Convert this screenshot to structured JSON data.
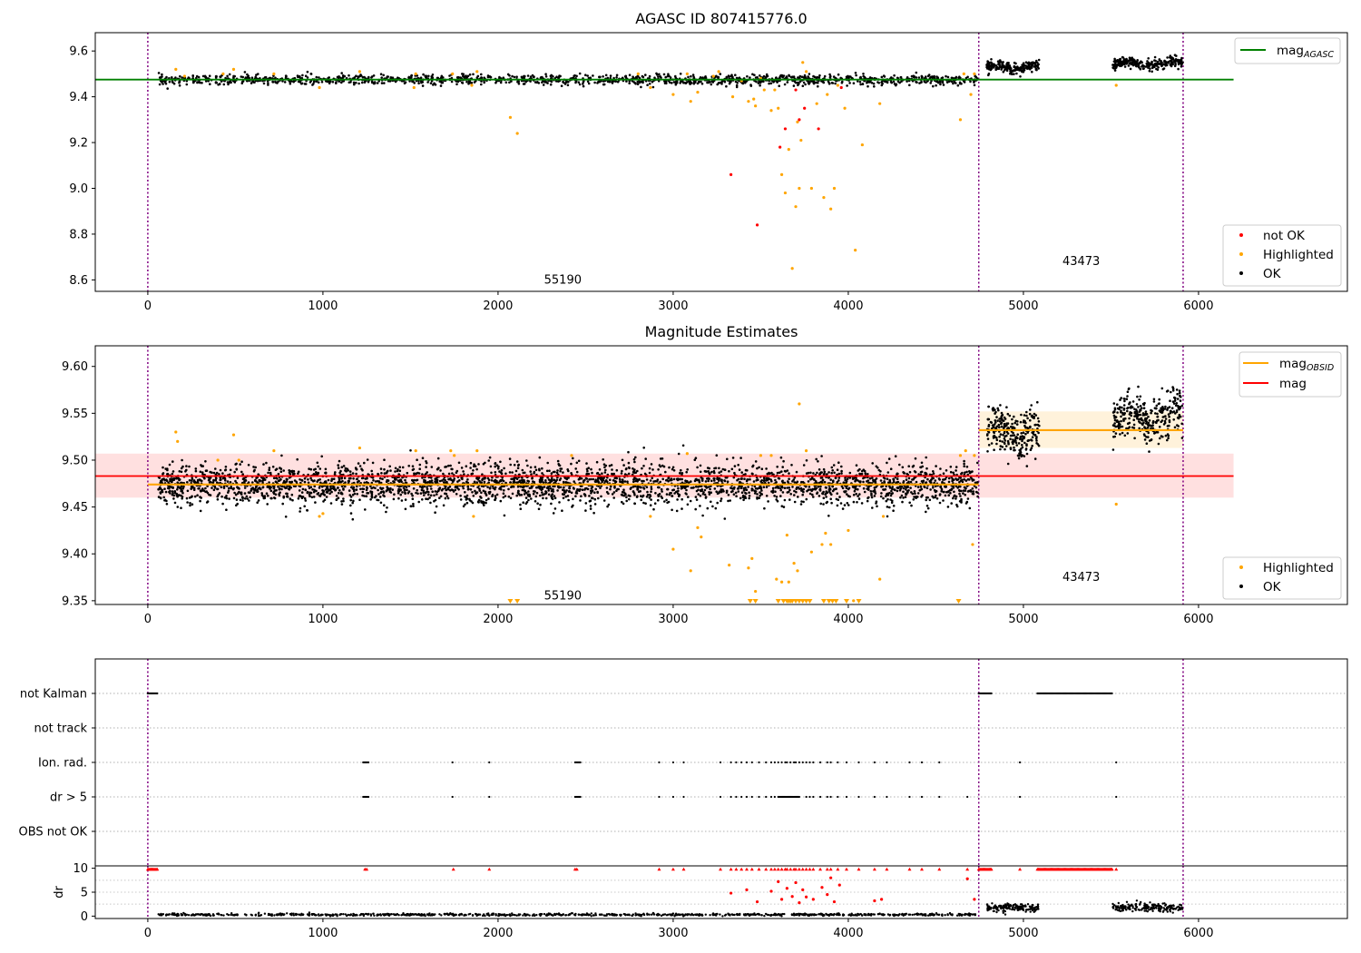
{
  "chart_data": [
    {
      "type": "scatter",
      "title": "AGASC ID 807415776.0",
      "xlim": [
        -300,
        6850
      ],
      "ylim": [
        8.55,
        9.68
      ],
      "xticks": [
        "0",
        "1000",
        "2000",
        "3000",
        "4000",
        "5000",
        "6000"
      ],
      "yticks": [
        "8.6",
        "8.8",
        "9.0",
        "9.2",
        "9.4",
        "9.6"
      ],
      "vlines_x": [
        0,
        4745,
        5912
      ],
      "annotations": [
        {
          "text": "55190",
          "x": 2370,
          "y": 8.6
        },
        {
          "text": "43473",
          "x": 5330,
          "y": 8.68
        }
      ],
      "hline": {
        "y": 9.475,
        "x0": -300,
        "x1": 6200,
        "color": "#008000"
      },
      "legend_top": {
        "label": "mag",
        "sub": "AGASC",
        "color": "#008000"
      },
      "legend_bottom": [
        {
          "label": "not OK",
          "color": "#ff0000"
        },
        {
          "label": "Highlighted",
          "color": "#ffa500"
        },
        {
          "label": "OK",
          "color": "#000000"
        }
      ],
      "series": [
        {
          "name": "OK",
          "color": "#000000",
          "segments": [
            {
              "x0": 60,
              "x1": 4740,
              "mean": 9.474,
              "spread": 0.011,
              "n": 1400
            },
            {
              "x0": 4790,
              "x1": 5090,
              "mean": 9.53,
              "spread": 0.012,
              "n": 200
            },
            {
              "x0": 5510,
              "x1": 5910,
              "mean": 9.545,
              "spread": 0.012,
              "n": 260
            }
          ]
        },
        {
          "name": "Highlighted",
          "color": "#ffa500",
          "points": [
            [
              160,
              9.52
            ],
            [
              210,
              9.49
            ],
            [
              430,
              9.5
            ],
            [
              490,
              9.52
            ],
            [
              720,
              9.5
            ],
            [
              980,
              9.44
            ],
            [
              1210,
              9.51
            ],
            [
              1520,
              9.44
            ],
            [
              1530,
              9.5
            ],
            [
              1740,
              9.5
            ],
            [
              1850,
              9.45
            ],
            [
              1880,
              9.51
            ],
            [
              2070,
              9.31
            ],
            [
              2110,
              9.24
            ],
            [
              2800,
              9.5
            ],
            [
              2870,
              9.44
            ],
            [
              3000,
              9.41
            ],
            [
              3080,
              9.5
            ],
            [
              3100,
              9.38
            ],
            [
              3140,
              9.42
            ],
            [
              3230,
              9.49
            ],
            [
              3260,
              9.51
            ],
            [
              3340,
              9.4
            ],
            [
              3390,
              9.47
            ],
            [
              3430,
              9.38
            ],
            [
              3460,
              9.39
            ],
            [
              3470,
              9.36
            ],
            [
              3500,
              9.48
            ],
            [
              3520,
              9.43
            ],
            [
              3560,
              9.34
            ],
            [
              3580,
              9.43
            ],
            [
              3600,
              9.35
            ],
            [
              3620,
              9.06
            ],
            [
              3640,
              8.98
            ],
            [
              3660,
              9.17
            ],
            [
              3680,
              8.65
            ],
            [
              3700,
              8.92
            ],
            [
              3710,
              9.29
            ],
            [
              3720,
              9.0
            ],
            [
              3730,
              9.21
            ],
            [
              3740,
              9.55
            ],
            [
              3760,
              9.51
            ],
            [
              3790,
              9.0
            ],
            [
              3820,
              9.37
            ],
            [
              3860,
              8.96
            ],
            [
              3880,
              9.41
            ],
            [
              3900,
              8.91
            ],
            [
              3920,
              9.0
            ],
            [
              3940,
              9.45
            ],
            [
              3980,
              9.35
            ],
            [
              4040,
              8.73
            ],
            [
              4080,
              9.19
            ],
            [
              4180,
              9.37
            ],
            [
              4640,
              9.3
            ],
            [
              4660,
              9.5
            ],
            [
              4700,
              9.41
            ],
            [
              4720,
              9.5
            ],
            [
              5530,
              9.45
            ]
          ]
        },
        {
          "name": "not OK",
          "color": "#ff0000",
          "points": [
            [
              3330,
              9.06
            ],
            [
              3480,
              8.84
            ],
            [
              3610,
              9.18
            ],
            [
              3640,
              9.26
            ],
            [
              3700,
              9.43
            ],
            [
              3720,
              9.3
            ],
            [
              3750,
              9.35
            ],
            [
              3830,
              9.26
            ],
            [
              3960,
              9.44
            ]
          ]
        }
      ]
    },
    {
      "type": "scatter",
      "title": "Magnitude Estimates",
      "xlim": [
        -300,
        6850
      ],
      "ylim": [
        9.346,
        9.622
      ],
      "xticks": [
        "0",
        "1000",
        "2000",
        "3000",
        "4000",
        "5000",
        "6000"
      ],
      "yticks": [
        "9.35",
        "9.40",
        "9.45",
        "9.50",
        "9.55",
        "9.60"
      ],
      "vlines_x": [
        0,
        4745,
        5912
      ],
      "annotations": [
        {
          "text": "55190",
          "x": 2370,
          "y": 9.355
        },
        {
          "text": "43473",
          "x": 5330,
          "y": 9.375
        }
      ],
      "bands": [
        {
          "x0": -300,
          "x1": 6200,
          "y0": 9.46,
          "y1": 9.507,
          "mid": 9.483,
          "color": "#ff0000",
          "alpha": 0.12
        },
        {
          "x0": 4745,
          "x1": 5912,
          "y0": 9.513,
          "y1": 9.552,
          "mid": 9.532,
          "color": "#ffa500",
          "alpha": 0.14
        }
      ],
      "orange_segments": [
        {
          "x0": 0,
          "x1": 4745,
          "y": 9.474
        },
        {
          "x0": 4745,
          "x1": 5912,
          "y": 9.532
        }
      ],
      "legend_top": [
        {
          "label": "mag",
          "sub": "OBSID",
          "color": "#ffa500"
        },
        {
          "label": "mag",
          "sub": "",
          "color": "#ff0000"
        }
      ],
      "legend_bottom": [
        {
          "label": "Highlighted",
          "color": "#ffa500"
        },
        {
          "label": "OK",
          "color": "#000000"
        }
      ],
      "series": [
        {
          "name": "OK",
          "color": "#000000",
          "segments": [
            {
              "x0": 60,
              "x1": 4740,
              "mean": 9.474,
              "spread": 0.011,
              "n": 3200
            },
            {
              "x0": 4790,
              "x1": 5090,
              "mean": 9.53,
              "spread": 0.012,
              "n": 260
            },
            {
              "x0": 5510,
              "x1": 5910,
              "mean": 9.545,
              "spread": 0.012,
              "n": 320
            }
          ]
        },
        {
          "name": "Highlighted",
          "color": "#ffa500",
          "points": [
            [
              160,
              9.53
            ],
            [
              170,
              9.52
            ],
            [
              400,
              9.5
            ],
            [
              490,
              9.527
            ],
            [
              520,
              9.5
            ],
            [
              720,
              9.51
            ],
            [
              980,
              9.44
            ],
            [
              1000,
              9.443
            ],
            [
              1210,
              9.513
            ],
            [
              1530,
              9.51
            ],
            [
              1730,
              9.51
            ],
            [
              1750,
              9.505
            ],
            [
              1860,
              9.44
            ],
            [
              1880,
              9.51
            ],
            [
              2420,
              9.505
            ],
            [
              2870,
              9.44
            ],
            [
              3000,
              9.405
            ],
            [
              3080,
              9.507
            ],
            [
              3100,
              9.382
            ],
            [
              3140,
              9.428
            ],
            [
              3160,
              9.418
            ],
            [
              3320,
              9.388
            ],
            [
              3430,
              9.385
            ],
            [
              3450,
              9.395
            ],
            [
              3470,
              9.36
            ],
            [
              3500,
              9.505
            ],
            [
              3560,
              9.505
            ],
            [
              3590,
              9.373
            ],
            [
              3620,
              9.37
            ],
            [
              3650,
              9.42
            ],
            [
              3660,
              9.37
            ],
            [
              3690,
              9.39
            ],
            [
              3710,
              9.382
            ],
            [
              3720,
              9.56
            ],
            [
              3760,
              9.51
            ],
            [
              3790,
              9.402
            ],
            [
              3850,
              9.41
            ],
            [
              3870,
              9.422
            ],
            [
              3900,
              9.41
            ],
            [
              4000,
              9.425
            ],
            [
              4030,
              9.35
            ],
            [
              4180,
              9.373
            ],
            [
              4200,
              9.44
            ],
            [
              4640,
              9.505
            ],
            [
              4670,
              9.51
            ],
            [
              4710,
              9.41
            ],
            [
              4720,
              9.505
            ],
            [
              5530,
              9.453
            ]
          ]
        },
        {
          "name": "Highlighted (below range)",
          "color": "#ffa500",
          "marker": "triangle-down",
          "y": 9.347,
          "xs": [
            2070,
            2110,
            3440,
            3470,
            3600,
            3630,
            3650,
            3660,
            3670,
            3680,
            3700,
            3720,
            3740,
            3760,
            3780,
            3860,
            3890,
            3910,
            3930,
            3990,
            4060,
            4630
          ]
        }
      ]
    },
    {
      "type": "scatter",
      "title": "",
      "xlim": [
        -300,
        6850
      ],
      "xticks": [
        "0",
        "1000",
        "2000",
        "3000",
        "4000",
        "5000",
        "6000"
      ],
      "categories": [
        "not Kalman",
        "not track",
        "Ion. rad.",
        "dr > 5",
        "OBS not OK"
      ],
      "vlines_x": [
        0,
        4745,
        5912
      ],
      "flag_segments": {
        "not Kalman": [
          [
            0,
            55
          ],
          [
            4745,
            4820
          ],
          [
            5080,
            5510
          ]
        ],
        "not track": [],
        "Ion. rad.": [
          [
            1230,
            1260
          ],
          [
            2440,
            2470
          ]
        ],
        "dr > 5": [
          [
            1230,
            1260
          ],
          [
            2440,
            2470
          ],
          [
            3600,
            3720
          ]
        ],
        "OBS not OK": []
      },
      "flag_points": {
        "Ion. rad.": [
          1740,
          1950,
          2920,
          3000,
          3060,
          3270,
          3330,
          3360,
          3390,
          3420,
          3450,
          3490,
          3530,
          3560,
          3580,
          3600,
          3620,
          3640,
          3650,
          3670,
          3690,
          3700,
          3720,
          3740,
          3760,
          3780,
          3800,
          3840,
          3880,
          3900,
          3940,
          3990,
          4060,
          4150,
          4220,
          4350,
          4420,
          4520,
          4980,
          5530
        ],
        "dr > 5": [
          1740,
          1950,
          2920,
          3000,
          3060,
          3270,
          3330,
          3360,
          3390,
          3420,
          3450,
          3490,
          3530,
          3560,
          3580,
          3760,
          3780,
          3800,
          3840,
          3880,
          3900,
          3940,
          3990,
          4060,
          4150,
          4220,
          4350,
          4420,
          4520,
          4680,
          4980,
          5530
        ]
      }
    },
    {
      "type": "scatter",
      "title": "",
      "ylabel": "dr",
      "xlim": [
        -300,
        6850
      ],
      "ylim": [
        -0.5,
        10.5
      ],
      "xticks": [
        "0",
        "1000",
        "2000",
        "3000",
        "4000",
        "5000",
        "6000"
      ],
      "yticks": [
        "0",
        "5",
        "10"
      ],
      "vlines_x": [
        0,
        4745,
        5912
      ],
      "series": [
        {
          "name": "OK",
          "color": "#000000",
          "segments": [
            {
              "x0": 60,
              "x1": 4740,
              "mean": 0.3,
              "spread": 0.12,
              "n": 900
            },
            {
              "x0": 4790,
              "x1": 5090,
              "mean": 1.7,
              "spread": 0.4,
              "n": 160
            },
            {
              "x0": 5510,
              "x1": 5910,
              "mean": 1.8,
              "spread": 0.45,
              "n": 200
            }
          ]
        },
        {
          "name": "not OK",
          "color": "#ff0000",
          "capped_y": 9.8,
          "cap_segments": [
            [
              0,
              55
            ],
            [
              4745,
              4820
            ],
            [
              5080,
              5510
            ]
          ],
          "cap_points": [
            1240,
            1250,
            1745,
            1950,
            2440,
            2450,
            2920,
            3000,
            3060,
            3270,
            3330,
            3360,
            3390,
            3420,
            3450,
            3490,
            3530,
            3560,
            3580,
            3600,
            3620,
            3640,
            3650,
            3670,
            3690,
            3700,
            3720,
            3740,
            3760,
            3780,
            3800,
            3840,
            3880,
            3900,
            3940,
            3990,
            4060,
            4150,
            4220,
            4350,
            4420,
            4520,
            4680,
            4980,
            5530
          ],
          "points": [
            [
              3330,
              4.8
            ],
            [
              3420,
              5.5
            ],
            [
              3480,
              3.0
            ],
            [
              3560,
              5.2
            ],
            [
              3600,
              7.2
            ],
            [
              3620,
              3.5
            ],
            [
              3650,
              5.8
            ],
            [
              3680,
              4.1
            ],
            [
              3700,
              7.0
            ],
            [
              3720,
              2.8
            ],
            [
              3740,
              5.5
            ],
            [
              3760,
              4.0
            ],
            [
              3800,
              3.5
            ],
            [
              3850,
              6.0
            ],
            [
              3880,
              4.5
            ],
            [
              3900,
              8.0
            ],
            [
              3920,
              3.0
            ],
            [
              3950,
              6.5
            ],
            [
              4150,
              3.2
            ],
            [
              4190,
              3.5
            ],
            [
              4680,
              7.8
            ],
            [
              4720,
              3.5
            ]
          ]
        }
      ]
    }
  ]
}
